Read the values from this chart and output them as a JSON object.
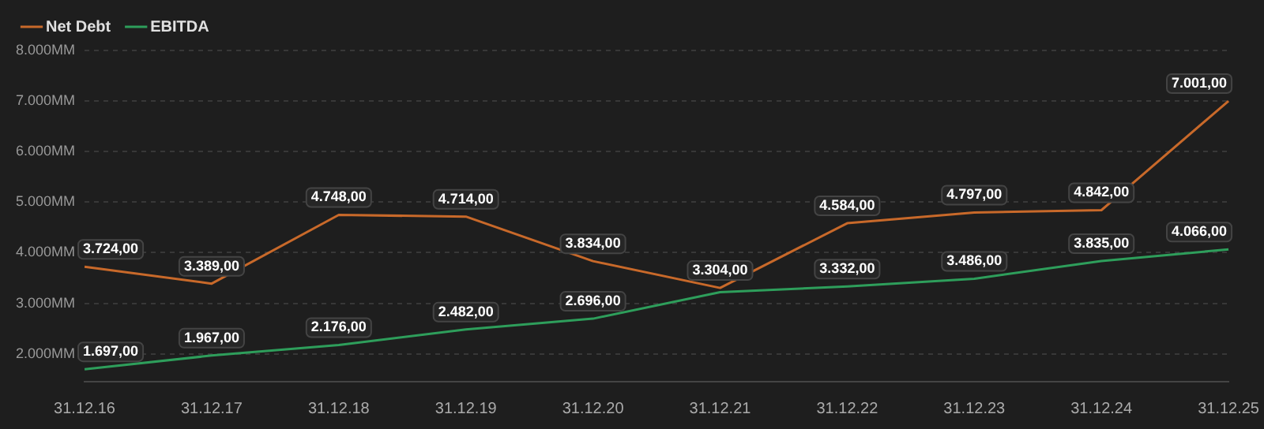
{
  "chart_data": {
    "type": "line",
    "categories": [
      "31.12.16",
      "31.12.17",
      "31.12.18",
      "31.12.19",
      "31.12.20",
      "31.12.21",
      "31.12.22",
      "31.12.23",
      "31.12.24",
      "31.12.25"
    ],
    "series": [
      {
        "name": "Net Debt",
        "color": "#c8692a",
        "values": [
          3724,
          3389,
          4748,
          4714,
          3834,
          3304,
          4584,
          4797,
          4842,
          7001
        ],
        "value_labels": [
          "3.724,00",
          "3.389,00",
          "4.748,00",
          "4.714,00",
          "3.834,00",
          "3.304,00",
          "4.584,00",
          "4.797,00",
          "4.842,00",
          "7.001,00"
        ]
      },
      {
        "name": "EBITDA",
        "color": "#2e9e5b",
        "values": [
          1697,
          1967,
          2176,
          2482,
          2696,
          3220,
          3332,
          3486,
          3835,
          4066
        ],
        "value_labels": [
          "1.697,00",
          "1.967,00",
          "2.176,00",
          "2.482,00",
          "2.696,00",
          null,
          "3.332,00",
          "3.486,00",
          "3.835,00",
          "4.066,00"
        ]
      }
    ],
    "ylim": [
      1450,
      8000
    ],
    "yticks": [
      {
        "value": 2000,
        "label": "2.000MM"
      },
      {
        "value": 3000,
        "label": "3.000MM"
      },
      {
        "value": 4000,
        "label": "4.000MM"
      },
      {
        "value": 5000,
        "label": "5.000MM"
      },
      {
        "value": 6000,
        "label": "6.000MM"
      },
      {
        "value": 7000,
        "label": "7.000MM"
      },
      {
        "value": 8000,
        "label": "8.000MM"
      }
    ],
    "grid": "y",
    "legend": "top left",
    "marker": "none",
    "line_style": "solid"
  }
}
